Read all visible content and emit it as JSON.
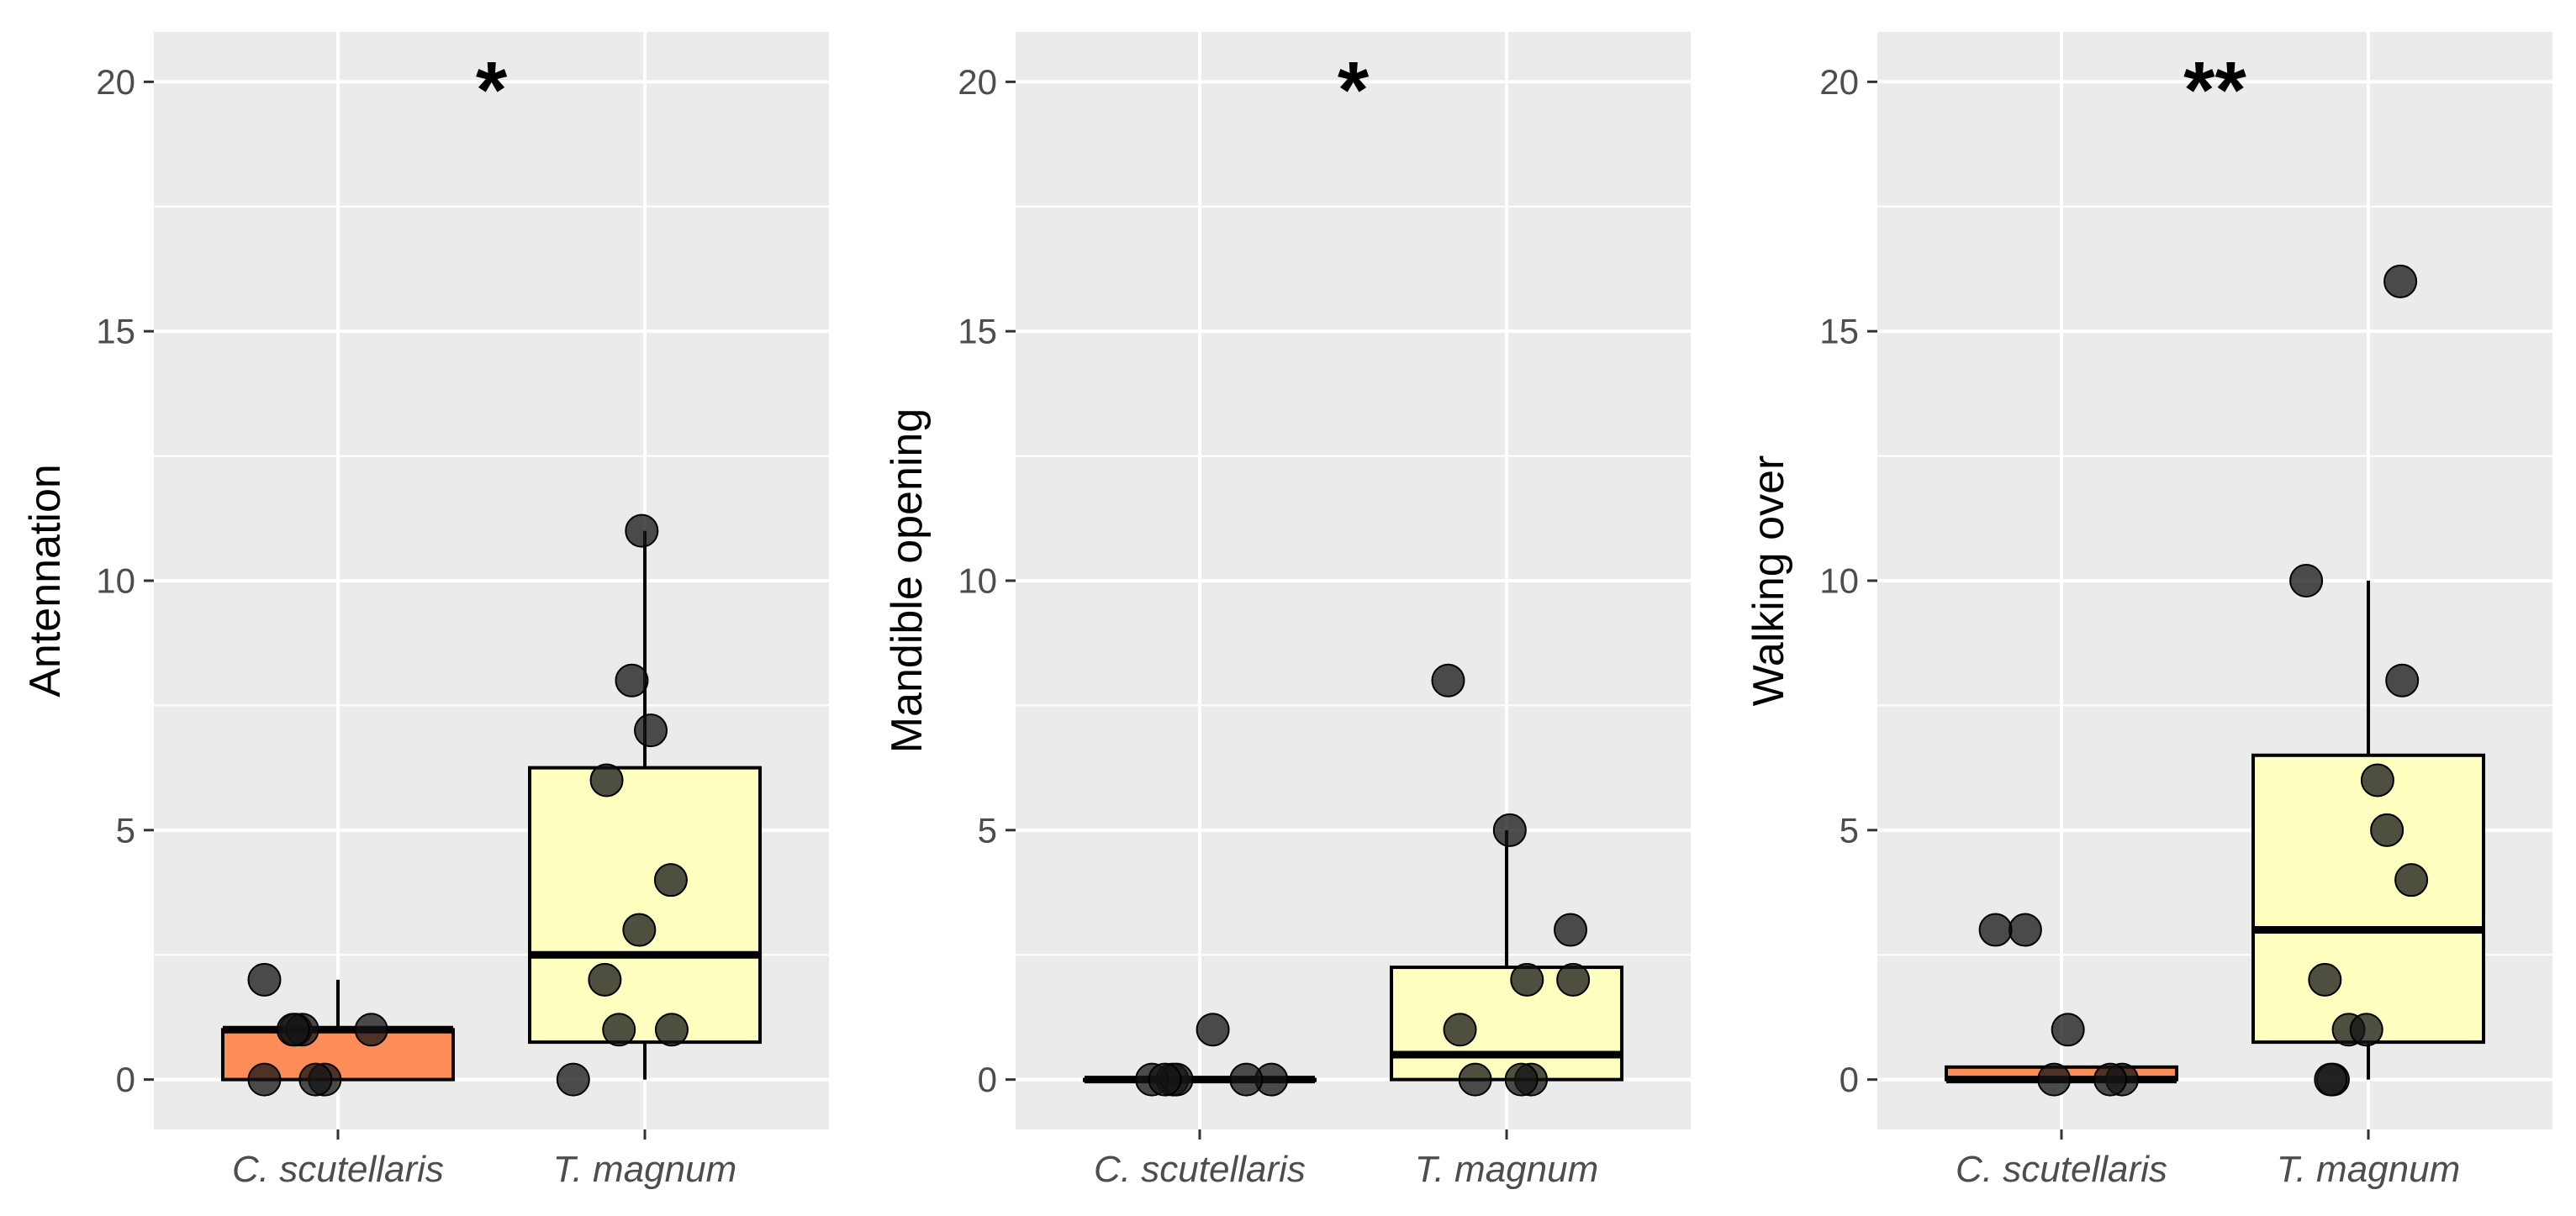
{
  "chart_data": [
    {
      "type": "box",
      "ylabel": "Antennation",
      "significance": "*",
      "ylim": [
        -1,
        21
      ],
      "yticks": [
        0,
        5,
        10,
        15,
        20
      ],
      "categories": [
        "C. scutellaris",
        "T. magnum"
      ],
      "fills": [
        "#FC8D59",
        "#FFFFBF"
      ],
      "boxes": [
        {
          "q1": 0,
          "median": 1,
          "q3": 1,
          "whisker_low": 0,
          "whisker_high": 2
        },
        {
          "q1": 0.75,
          "median": 2.5,
          "q3": 6.25,
          "whisker_low": 0,
          "whisker_high": 11
        }
      ],
      "points": [
        [
          0,
          0,
          0,
          1,
          1,
          1,
          1,
          2
        ],
        [
          0,
          1,
          1,
          2,
          3,
          4,
          6,
          7,
          8,
          11
        ]
      ]
    },
    {
      "type": "box",
      "ylabel": "Mandible opening",
      "significance": "*",
      "ylim": [
        -1,
        21
      ],
      "yticks": [
        0,
        5,
        10,
        15,
        20
      ],
      "categories": [
        "C. scutellaris",
        "T. magnum"
      ],
      "fills": [
        "#FC8D59",
        "#FFFFBF"
      ],
      "boxes": [
        {
          "q1": 0,
          "median": 0,
          "q3": 0,
          "whisker_low": 0,
          "whisker_high": 0
        },
        {
          "q1": 0,
          "median": 0.5,
          "q3": 2.25,
          "whisker_low": 0,
          "whisker_high": 5
        }
      ],
      "points": [
        [
          0,
          0,
          0,
          0,
          0,
          0,
          1
        ],
        [
          0,
          0,
          0,
          1,
          2,
          2,
          3,
          5,
          8
        ]
      ]
    },
    {
      "type": "box",
      "ylabel": "Walking over",
      "significance": "**",
      "ylim": [
        -1,
        21
      ],
      "yticks": [
        0,
        5,
        10,
        15,
        20
      ],
      "categories": [
        "C. scutellaris",
        "T. magnum"
      ],
      "fills": [
        "#FC8D59",
        "#FFFFBF"
      ],
      "boxes": [
        {
          "q1": 0,
          "median": 0,
          "q3": 0.25,
          "whisker_low": 0,
          "whisker_high": 0.25
        },
        {
          "q1": 0.75,
          "median": 3,
          "q3": 6.5,
          "whisker_low": 0,
          "whisker_high": 10
        }
      ],
      "points": [
        [
          0,
          0,
          0,
          1,
          3,
          3
        ],
        [
          0,
          0,
          1,
          1,
          2,
          4,
          5,
          6,
          8,
          10,
          16
        ]
      ]
    }
  ]
}
